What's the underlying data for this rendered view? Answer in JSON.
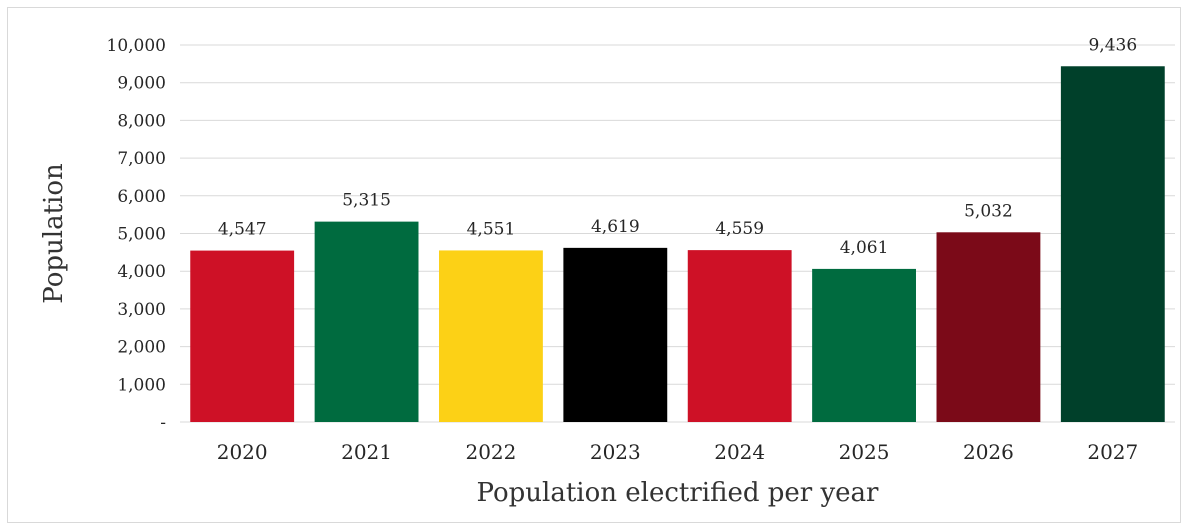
{
  "chart_data": {
    "type": "bar",
    "categories": [
      "2020",
      "2021",
      "2022",
      "2023",
      "2024",
      "2025",
      "2026",
      "2027"
    ],
    "values": [
      4547,
      5315,
      4551,
      4619,
      4559,
      4061,
      5032,
      9436
    ],
    "data_labels": [
      "4,547",
      "5,315",
      "4,551",
      "4,619",
      "4,559",
      "4,061",
      "5,032",
      "9,436"
    ],
    "bar_colors": [
      "#CE1126",
      "#006B3F",
      "#FCD116",
      "#000000",
      "#CE1126",
      "#006B3F",
      "#7B0A18",
      "#00402A"
    ],
    "title": "",
    "xlabel": "Population electrified per year",
    "ylabel": "Population",
    "ylim": [
      0,
      10000
    ],
    "yticks": [
      0,
      1000,
      2000,
      3000,
      4000,
      5000,
      6000,
      7000,
      8000,
      9000,
      10000
    ],
    "ytick_labels": [
      "-",
      "1,000",
      "2,000",
      "3,000",
      "4,000",
      "5,000",
      "6,000",
      "7,000",
      "8,000",
      "9,000",
      "10,000"
    ],
    "grid": true,
    "gridline_color": "#d9d9d9",
    "legend": "none"
  }
}
